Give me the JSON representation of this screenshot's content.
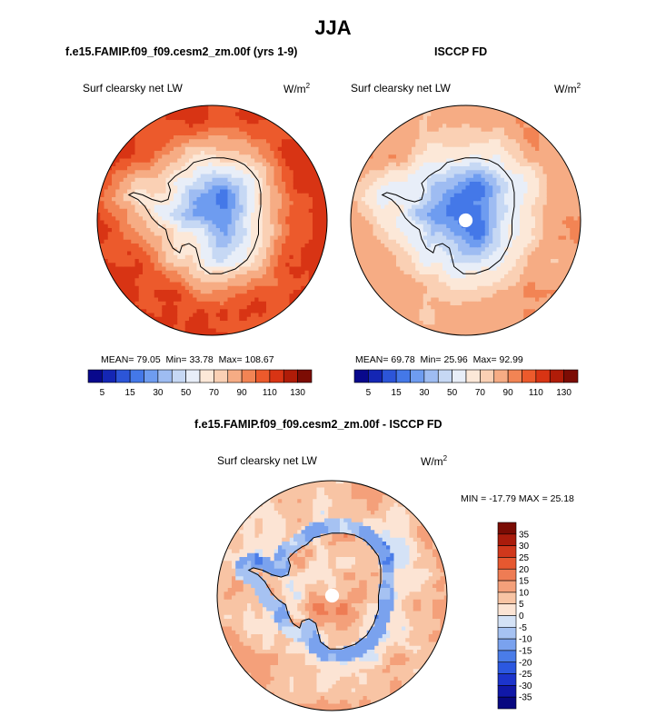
{
  "chart_data": {
    "title": "JJA",
    "panels": [
      {
        "type": "heatmap",
        "projection": "south-polar-stereographic",
        "title": "f.e15.FAMIP.f09_f09.cesm2_zm.00f (yrs 1-9)",
        "variable": "Surf clearsky net LW",
        "units_base": "W/m",
        "units_exp": "2",
        "stats": {
          "mean": "MEAN= 79.05",
          "min": "Min= 33.78",
          "max": "Max= 108.67"
        },
        "colorbar": {
          "orientation": "horizontal",
          "levels": [
            5,
            15,
            30,
            50,
            70,
            90,
            110,
            130
          ],
          "tick_labels": [
            "5",
            "15",
            "30",
            "50",
            "70",
            "90",
            "110",
            "130"
          ]
        },
        "field": {
          "ocean_value": 105,
          "ice_value": 40,
          "coast_value": 75,
          "has_pole_hole": false
        }
      },
      {
        "type": "heatmap",
        "projection": "south-polar-stereographic",
        "title": "ISCCP FD",
        "variable": "Surf clearsky net LW",
        "units_base": "W/m",
        "units_exp": "2",
        "stats": {
          "mean": "MEAN= 69.78",
          "min": "Min= 25.96",
          "max": "Max= 92.99"
        },
        "colorbar": {
          "orientation": "horizontal",
          "levels": [
            5,
            15,
            30,
            50,
            70,
            90,
            110,
            130
          ],
          "tick_labels": [
            "5",
            "15",
            "30",
            "50",
            "70",
            "90",
            "110",
            "130"
          ]
        },
        "field": {
          "ocean_value": 85,
          "ice_value": 35,
          "coast_value": 65,
          "has_pole_hole": true
        }
      },
      {
        "type": "heatmap",
        "projection": "south-polar-stereographic",
        "title": "f.e15.FAMIP.f09_f09.cesm2_zm.00f - ISCCP FD",
        "variable": "Surf clearsky net LW",
        "units_base": "W/m",
        "units_exp": "2",
        "stats": {
          "minmax": "MIN = -17.79 MAX =  25.18"
        },
        "colorbar": {
          "orientation": "vertical",
          "levels": [
            35,
            30,
            25,
            20,
            15,
            10,
            5,
            0,
            -5,
            -10,
            -15,
            -20,
            -25,
            -30,
            -35
          ],
          "tick_labels": [
            "35",
            "30",
            "25",
            "20",
            "15",
            "10",
            "5",
            "0",
            "-5",
            "-10",
            "-15",
            "-20",
            "-25",
            "-30",
            "-35"
          ]
        },
        "field": {
          "ocean_value": 12,
          "ice_value": 8,
          "coast_value": -8,
          "has_pole_hole": true
        }
      }
    ]
  },
  "colors": {
    "abs_scale": [
      "#08088c",
      "#1426b4",
      "#2c55d8",
      "#4478e8",
      "#6e9cf0",
      "#9ebcf2",
      "#c6d8f4",
      "#e8eef8",
      "#fce8d8",
      "#fad0b4",
      "#f6ac84",
      "#f28454",
      "#ec5a2c",
      "#d83414",
      "#b01c08",
      "#7c0c04"
    ],
    "diff_scale": [
      "#080880",
      "#1018a8",
      "#1c34cc",
      "#2c58e0",
      "#4a7ce8",
      "#7aa2ee",
      "#a6c2f2",
      "#d4e2f6",
      "#fce4d4",
      "#f8c4a4",
      "#f4a07a",
      "#ee7c54",
      "#e65830",
      "#d0381c",
      "#aa1c0c",
      "#7a0c04"
    ],
    "coastline": "#000000",
    "pole_hole": "#ffffff"
  }
}
